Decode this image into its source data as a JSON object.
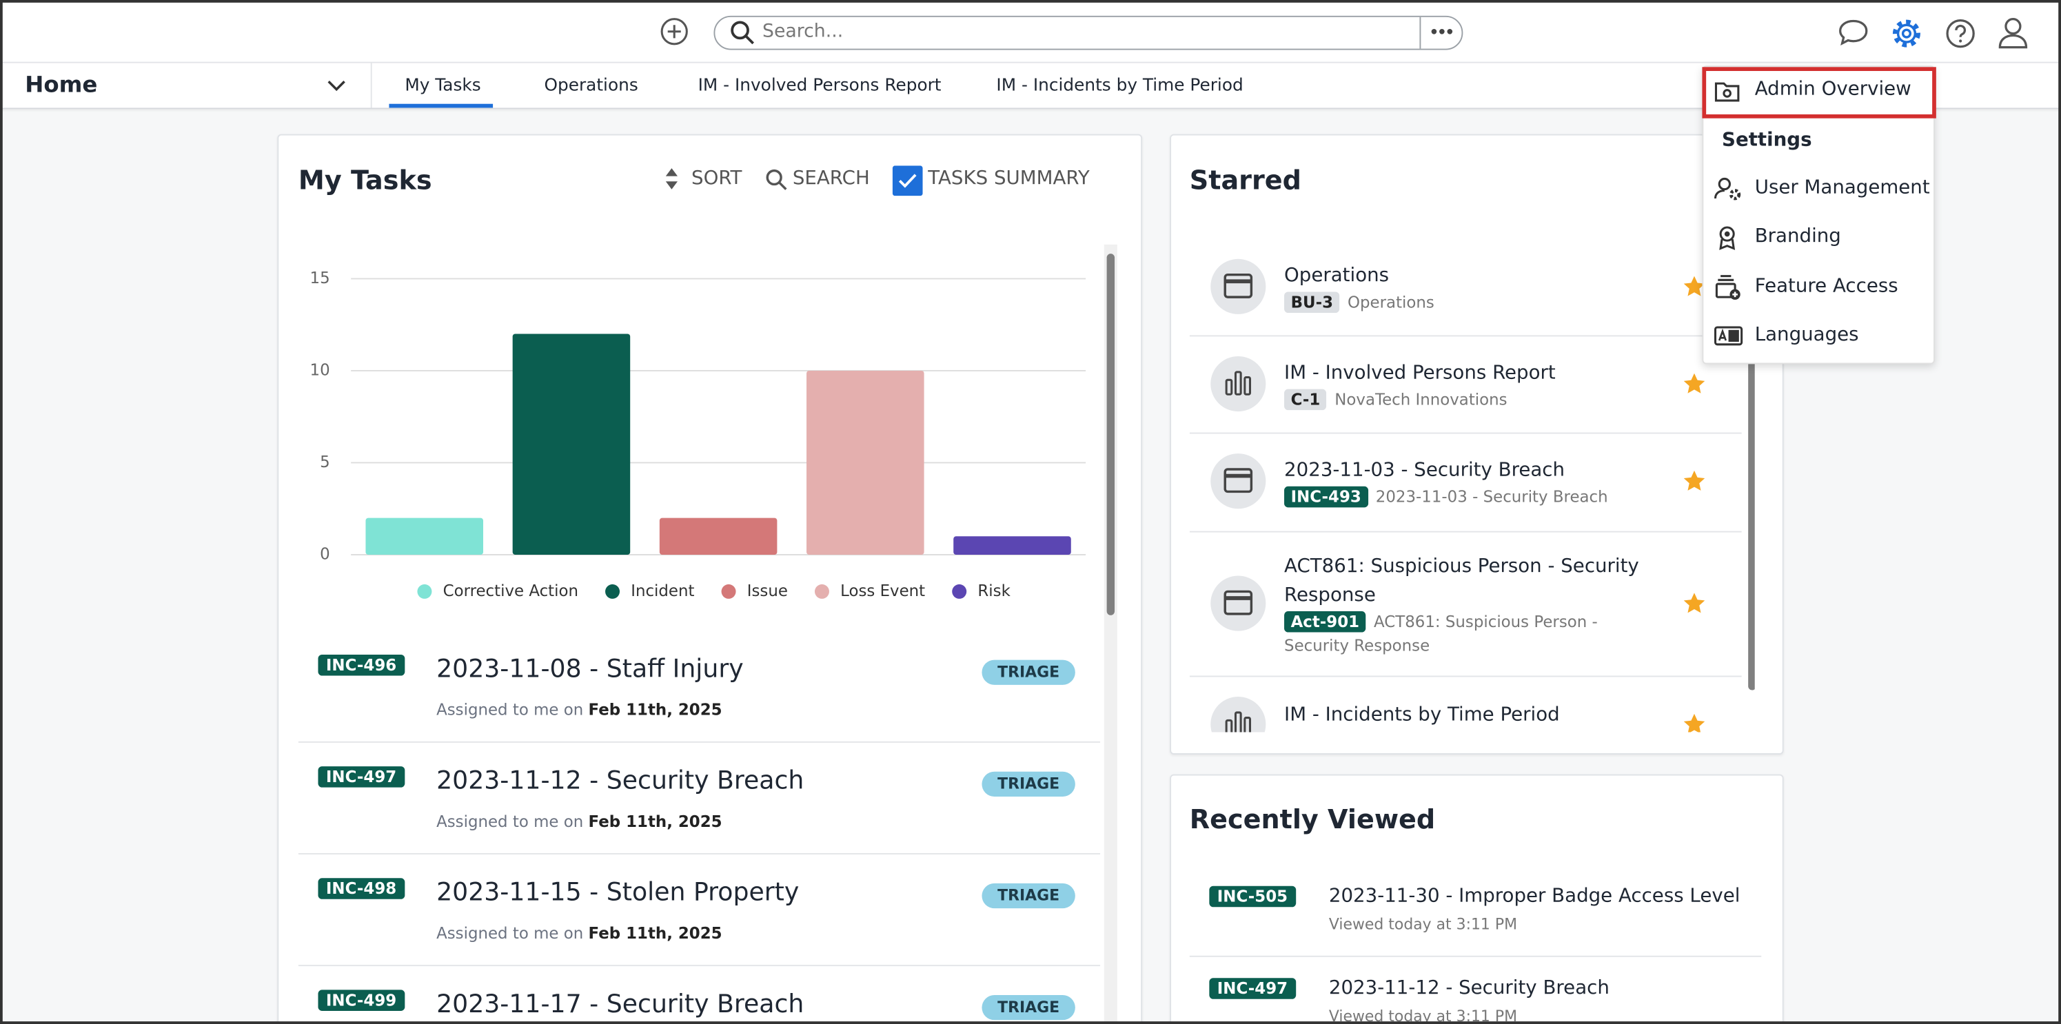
{
  "topbar": {
    "search_placeholder": "Search..."
  },
  "nav": {
    "home": "Home",
    "tabs": [
      "My Tasks",
      "Operations",
      "IM - Involved Persons Report",
      "IM - Incidents by Time Period"
    ]
  },
  "my_tasks": {
    "title": "My Tasks",
    "sort": "SORT",
    "search": "SEARCH",
    "summary": "TASKS SUMMARY",
    "chart": {
      "type": "bar",
      "categories": [
        "Corrective Action",
        "Incident",
        "Issue",
        "Loss Event",
        "Risk"
      ],
      "values": [
        2,
        12,
        2,
        10,
        1
      ],
      "colors": [
        "#7fe3d5",
        "#0b5e50",
        "#d47878",
        "#e4afae",
        "#5b46b2"
      ],
      "ylim": [
        0,
        15
      ],
      "yticks": [
        0,
        5,
        10,
        15
      ],
      "grid": true
    },
    "tasks": [
      {
        "id": "INC-496",
        "title": "2023-11-08 - Staff Injury",
        "status": "TRIAGE",
        "assigned": "Assigned to me on",
        "date": "Feb 11th, 2025"
      },
      {
        "id": "INC-497",
        "title": "2023-11-12 - Security Breach",
        "status": "TRIAGE",
        "assigned": "Assigned to me on",
        "date": "Feb 11th, 2025"
      },
      {
        "id": "INC-498",
        "title": "2023-11-15 - Stolen Property",
        "status": "TRIAGE",
        "assigned": "Assigned to me on",
        "date": "Feb 11th, 2025"
      },
      {
        "id": "INC-499",
        "title": "2023-11-17 - Security Breach",
        "status": "TRIAGE"
      }
    ]
  },
  "starred": {
    "title": "Starred",
    "items": [
      {
        "name": "Operations",
        "code": "BU-3",
        "sub": "Operations"
      },
      {
        "name": "IM - Involved Persons Report",
        "code": "C-1",
        "sub": "NovaTech Innovations"
      },
      {
        "name": "2023-11-03 - Security Breach",
        "code": "INC-493",
        "sub": "2023-11-03 - Security Breach"
      },
      {
        "name": "ACT861: Suspicious Person - Security Response",
        "code": "Act-901",
        "sub": "ACT861: Suspicious Person - Security Response"
      },
      {
        "name": "IM - Incidents by Time Period"
      }
    ]
  },
  "recent": {
    "title": "Recently Viewed",
    "items": [
      {
        "code": "INC-505",
        "name": "2023-11-30 - Improper Badge Access Level",
        "viewed": "Viewed today at 3:11 PM"
      },
      {
        "code": "INC-497",
        "name": "2023-11-12 - Security Breach",
        "viewed": "Viewed today at 3:11 PM"
      }
    ]
  },
  "admin_menu": {
    "overview": "Admin Overview",
    "settings": "Settings",
    "items": [
      "User Management",
      "Branding",
      "Feature Access",
      "Languages"
    ]
  }
}
